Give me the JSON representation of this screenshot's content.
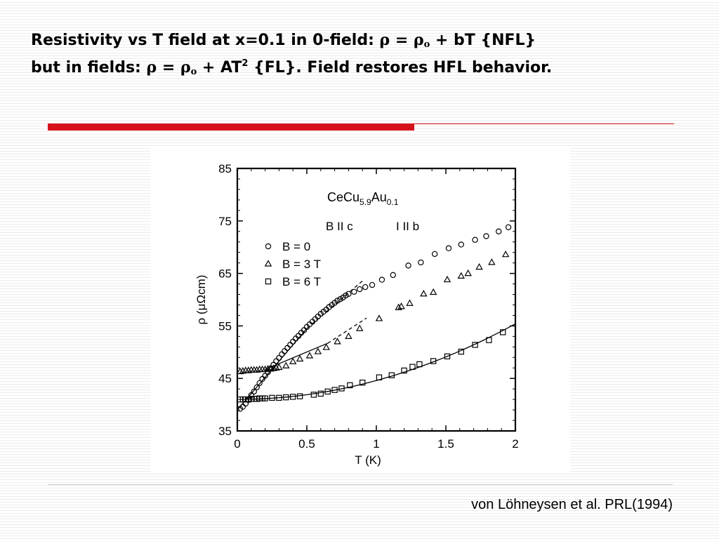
{
  "slide": {
    "title_line1_part1": "Resistivity vs T field at x=0.1 in 0-field: ",
    "title_rho": "ρ",
    "title_eq": " = ",
    "title_rho0": "ρ",
    "title_sub_o": "o",
    "title_line1_part2": " + bT {NFL}",
    "title_line2_part1": "but in fields: ",
    "title_line2_rho": "ρ",
    "title_line2_eq": " = ",
    "title_line2_rho0": "ρ",
    "title_line2_sub_o": "o",
    "title_line2_part2": " + AT",
    "title_line2_sup": "2",
    "title_line2_part3": " {FL}. Field restores HFL behavior.",
    "citation": "von Löhneysen et al. PRL(1994)",
    "accent_color": "#d8121a"
  },
  "chart_data": {
    "type": "scatter",
    "sample_label": "CeCu",
    "sample_sub1": "5.9",
    "sample_mid": "Au",
    "sample_sub2": "0.1",
    "annotation_b": "B II c",
    "annotation_i": "I II b",
    "xlabel": "T (K)",
    "ylabel": "ρ (μΩcm)",
    "xlim": [
      0,
      2
    ],
    "ylim": [
      35,
      85
    ],
    "x_ticks": [
      "0",
      "0.5",
      "1",
      "1.5",
      "2"
    ],
    "y_ticks": [
      "35",
      "45",
      "55",
      "65",
      "75",
      "85"
    ],
    "legend_position": "left-middle",
    "series": [
      {
        "name": "B = 0",
        "marker": "circle",
        "x": [
          0.02,
          0.04,
          0.06,
          0.08,
          0.1,
          0.12,
          0.14,
          0.16,
          0.18,
          0.2,
          0.22,
          0.24,
          0.26,
          0.28,
          0.3,
          0.32,
          0.34,
          0.36,
          0.38,
          0.4,
          0.42,
          0.44,
          0.46,
          0.48,
          0.5,
          0.52,
          0.54,
          0.56,
          0.58,
          0.6,
          0.62,
          0.64,
          0.66,
          0.68,
          0.7,
          0.72,
          0.74,
          0.76,
          0.78,
          0.8,
          0.84,
          0.88,
          0.92,
          0.97,
          1.04,
          1.12,
          1.23,
          1.32,
          1.42,
          1.52,
          1.61,
          1.71,
          1.79,
          1.88,
          1.95
        ],
        "y": [
          39.2,
          39.6,
          40.2,
          40.9,
          41.8,
          42.5,
          43.3,
          44.1,
          44.9,
          45.5,
          46.2,
          46.9,
          47.6,
          48.3,
          48.9,
          49.6,
          50.2,
          50.8,
          51.4,
          52.0,
          52.6,
          53.1,
          53.7,
          54.2,
          54.8,
          55.3,
          55.8,
          56.3,
          56.8,
          57.3,
          57.7,
          58.1,
          58.6,
          59.0,
          59.4,
          59.8,
          60.1,
          60.4,
          60.8,
          61.1,
          61.5,
          62.0,
          62.4,
          62.8,
          63.8,
          64.7,
          66.5,
          67.1,
          68.7,
          69.8,
          70.5,
          71.4,
          72.1,
          73.0,
          73.8
        ]
      },
      {
        "name": "B = 3 T",
        "marker": "triangle",
        "x": [
          0.02,
          0.04,
          0.06,
          0.08,
          0.1,
          0.12,
          0.14,
          0.16,
          0.18,
          0.2,
          0.22,
          0.24,
          0.26,
          0.28,
          0.3,
          0.35,
          0.4,
          0.45,
          0.52,
          0.58,
          0.64,
          0.72,
          0.8,
          0.88,
          1.02,
          1.16,
          1.18,
          1.24,
          1.34,
          1.41,
          1.51,
          1.61,
          1.66,
          1.74,
          1.83,
          1.93
        ],
        "y": [
          46.3,
          46.4,
          46.5,
          46.5,
          46.6,
          46.6,
          46.6,
          46.7,
          46.7,
          46.7,
          46.8,
          46.8,
          46.9,
          47.0,
          47.1,
          47.4,
          48.2,
          48.7,
          49.3,
          50.1,
          50.9,
          52.0,
          53.0,
          54.5,
          56.4,
          58.5,
          58.7,
          59.3,
          61.1,
          61.4,
          63.8,
          64.5,
          65.0,
          66.2,
          67.1,
          68.6
        ]
      },
      {
        "name": "B = 6 T",
        "marker": "square",
        "x": [
          0.02,
          0.04,
          0.06,
          0.08,
          0.1,
          0.12,
          0.14,
          0.16,
          0.18,
          0.2,
          0.25,
          0.3,
          0.35,
          0.4,
          0.45,
          0.55,
          0.6,
          0.65,
          0.7,
          0.75,
          0.81,
          0.9,
          1.02,
          1.11,
          1.2,
          1.26,
          1.31,
          1.41,
          1.51,
          1.61,
          1.71,
          1.81,
          1.91
        ],
        "y": [
          41.0,
          41.0,
          41.0,
          41.0,
          41.1,
          41.1,
          41.1,
          41.2,
          41.2,
          41.2,
          41.3,
          41.3,
          41.4,
          41.5,
          41.6,
          41.9,
          42.1,
          42.5,
          42.8,
          43.1,
          43.7,
          44.2,
          45.2,
          45.6,
          46.5,
          47.2,
          47.7,
          48.3,
          49.2,
          50.1,
          51.4,
          52.3,
          53.8
        ]
      }
    ],
    "fit_lines": [
      {
        "style": "solid",
        "x": [
          0,
          0.5
        ],
        "y": [
          39.0,
          54.5
        ]
      },
      {
        "style": "dashed",
        "x": [
          0.5,
          0.91
        ],
        "y": [
          54.5,
          63.8
        ]
      },
      {
        "style": "solid",
        "x": [
          0.2,
          0.65
        ],
        "y": [
          46.7,
          51.7
        ]
      },
      {
        "style": "dashed",
        "x": [
          0.65,
          0.93
        ],
        "y": [
          51.7,
          56.5
        ]
      },
      {
        "style": "solid",
        "curve": "quadratic",
        "rho0": 41.0,
        "A": 3.6,
        "xlim": [
          0.02,
          2.0
        ]
      }
    ]
  }
}
